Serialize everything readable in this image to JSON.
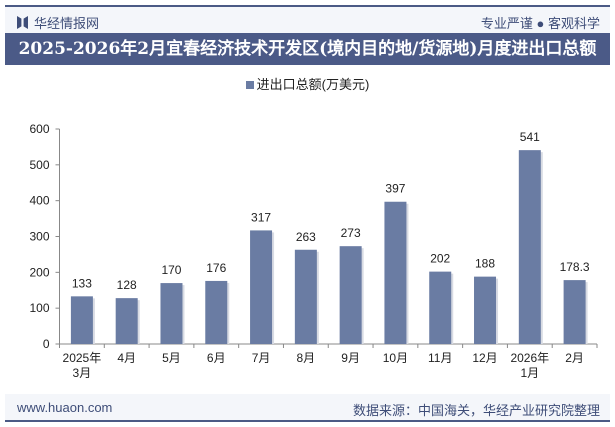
{
  "header": {
    "brand": "华经情报网",
    "slogan": "专业严谨 ● 客观科学"
  },
  "title": "2025-2026年2月宜春经济技术开发区(境内目的地/货源地)月度进出口总额",
  "footer": {
    "site": "www.huaon.com",
    "source": "数据来源：中国海关，华经产业研究院整理"
  },
  "colors": {
    "bar": "#6a7ca3",
    "header": "#4b5a87"
  },
  "chart_data": {
    "type": "bar",
    "categories": [
      "2025年\n3月",
      "4月",
      "5月",
      "6月",
      "7月",
      "8月",
      "9月",
      "10月",
      "11月",
      "12月",
      "2026年\n1月",
      "2月"
    ],
    "series": [
      {
        "name": "进出口总额(万美元)",
        "values": [
          133,
          128,
          170,
          176,
          317,
          263,
          273,
          397,
          202,
          188,
          541,
          178.3
        ]
      }
    ],
    "ylim": [
      0,
      600
    ],
    "yticks": [
      0,
      100,
      200,
      300,
      400,
      500,
      600
    ],
    "legend": "top-center",
    "grid": false
  }
}
